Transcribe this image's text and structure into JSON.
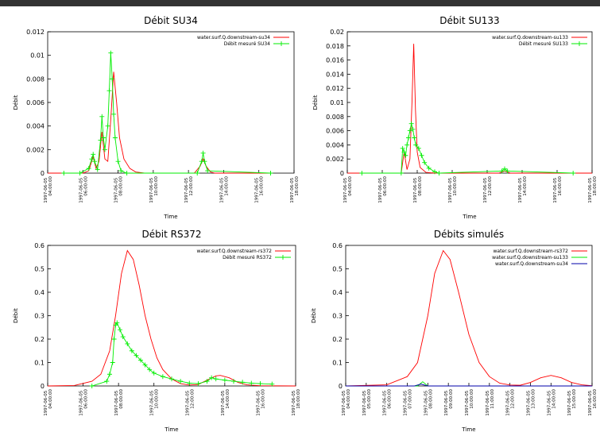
{
  "chart_data": [
    {
      "type": "line",
      "title": "Débit SU34",
      "xlabel": "Time",
      "ylabel": "Débit",
      "legend": "upper right",
      "xlim": [
        "1997-06-05 04:00:00",
        "1997-06-05 18:00:00"
      ],
      "xticks": [
        "1997-06-05 04:00:00",
        "1997-06-05 06:00:00",
        "1997-06-05 08:00:00",
        "1997-06-05 10:00:00",
        "1997-06-05 12:00:00",
        "1997-06-05 14:00:00",
        "1997-06-05 16:00:00",
        "1997-06-05 18:00:00"
      ],
      "ylim": [
        0,
        0.012
      ],
      "yticks": [
        0,
        0.002,
        0.004,
        0.006,
        0.008,
        0.01,
        0.012
      ],
      "series": [
        {
          "name": "water.surf.Q.downstream-su34",
          "color": "#ff0000",
          "x": [
            "1997-06-05 04:00:00",
            "1997-06-05 06:00:00",
            "1997-06-05 06:20:00",
            "1997-06-05 06:35:00",
            "1997-06-05 06:45:00",
            "1997-06-05 06:55:00",
            "1997-06-05 07:05:00",
            "1997-06-05 07:15:00",
            "1997-06-05 07:25:00",
            "1997-06-05 07:35:00",
            "1997-06-05 07:45:00",
            "1997-06-05 07:55:00",
            "1997-06-05 08:05:00",
            "1997-06-05 08:20:00",
            "1997-06-05 08:40:00",
            "1997-06-05 09:00:00",
            "1997-06-05 09:30:00",
            "1997-06-05 12:20:00",
            "1997-06-05 12:40:00",
            "1997-06-05 12:50:00",
            "1997-06-05 13:00:00",
            "1997-06-05 13:15:00",
            "1997-06-05 13:30:00",
            "1997-06-05 16:40:00"
          ],
          "values": [
            0,
            0,
            0.0002,
            0.0014,
            0.0004,
            0.001,
            0.0035,
            0.0012,
            0.001,
            0.0045,
            0.0086,
            0.006,
            0.003,
            0.0012,
            0.0004,
            0.0001,
            0,
            0,
            0.0006,
            0.0012,
            0.0006,
            0.0001,
            0,
            0
          ]
        },
        {
          "name": "Débit mesuré SU34",
          "color": "#00ee00",
          "marker": "+",
          "x": [
            "1997-06-05 04:55:00",
            "1997-06-05 05:50:00",
            "1997-06-05 06:20:00",
            "1997-06-05 06:30:00",
            "1997-06-05 06:35:00",
            "1997-06-05 06:40:00",
            "1997-06-05 06:50:00",
            "1997-06-05 07:00:00",
            "1997-06-05 07:05:00",
            "1997-06-05 07:10:00",
            "1997-06-05 07:15:00",
            "1997-06-05 07:25:00",
            "1997-06-05 07:30:00",
            "1997-06-05 07:35:00",
            "1997-06-05 07:40:00",
            "1997-06-05 07:45:00",
            "1997-06-05 07:50:00",
            "1997-06-05 08:00:00",
            "1997-06-05 08:10:00",
            "1997-06-05 08:30:00",
            "1997-06-05 12:30:00",
            "1997-06-05 12:45:00",
            "1997-06-05 12:50:00",
            "1997-06-05 12:55:00",
            "1997-06-05 13:05:00",
            "1997-06-05 16:40:00"
          ],
          "values": [
            0,
            0,
            0.0004,
            0.0012,
            0.0016,
            0.001,
            0.0003,
            0.0028,
            0.0048,
            0.003,
            0.002,
            0.004,
            0.007,
            0.0102,
            0.008,
            0.005,
            0.003,
            0.001,
            0.0002,
            0,
            0,
            0.001,
            0.0017,
            0.001,
            0.0002,
            0
          ]
        }
      ]
    },
    {
      "type": "line",
      "title": "Débit SU133",
      "xlabel": "Time",
      "ylabel": "Débit",
      "legend": "upper right",
      "xlim": [
        "1997-06-05 04:00:00",
        "1997-06-05 18:00:00"
      ],
      "xticks": [
        "1997-06-05 04:00:00",
        "1997-06-05 06:00:00",
        "1997-06-05 08:00:00",
        "1997-06-05 10:00:00",
        "1997-06-05 12:00:00",
        "1997-06-05 14:00:00",
        "1997-06-05 16:00:00",
        "1997-06-05 18:00:00"
      ],
      "ylim": [
        0,
        0.02
      ],
      "yticks": [
        0,
        0.002,
        0.004,
        0.006,
        0.008,
        0.01,
        0.012,
        0.014,
        0.016,
        0.018,
        0.02
      ],
      "series": [
        {
          "name": "water.surf.Q.downstream-su133",
          "color": "#ff0000",
          "x": [
            "1997-06-05 04:00:00",
            "1997-06-05 07:05:00",
            "1997-06-05 07:15:00",
            "1997-06-05 07:25:00",
            "1997-06-05 07:35:00",
            "1997-06-05 07:42:00",
            "1997-06-05 07:48:00",
            "1997-06-05 07:54:00",
            "1997-06-05 08:00:00",
            "1997-06-05 08:10:00",
            "1997-06-05 08:30:00",
            "1997-06-05 09:00:00",
            "1997-06-05 12:40:00",
            "1997-06-05 13:00:00",
            "1997-06-05 13:20:00",
            "1997-06-05 18:00:00"
          ],
          "values": [
            0,
            0,
            0.003,
            0.0005,
            0.002,
            0.01,
            0.0183,
            0.009,
            0.003,
            0.0008,
            0.0001,
            0,
            0,
            0.0003,
            0,
            0
          ]
        },
        {
          "name": "Débit mesuré SU133",
          "color": "#00ee00",
          "marker": "+",
          "x": [
            "1997-06-05 04:50:00",
            "1997-06-05 07:05:00",
            "1997-06-05 07:10:00",
            "1997-06-05 07:15:00",
            "1997-06-05 07:20:00",
            "1997-06-05 07:25:00",
            "1997-06-05 07:30:00",
            "1997-06-05 07:35:00",
            "1997-06-05 07:40:00",
            "1997-06-05 07:45:00",
            "1997-06-05 07:50:00",
            "1997-06-05 07:55:00",
            "1997-06-05 08:05:00",
            "1997-06-05 08:15:00",
            "1997-06-05 08:25:00",
            "1997-06-05 08:40:00",
            "1997-06-05 09:00:00",
            "1997-06-05 09:15:00",
            "1997-06-05 12:50:00",
            "1997-06-05 13:00:00",
            "1997-06-05 13:10:00",
            "1997-06-05 16:55:00"
          ],
          "values": [
            0,
            0,
            0.0035,
            0.003,
            0.0025,
            0.004,
            0.005,
            0.006,
            0.007,
            0.0062,
            0.005,
            0.004,
            0.0035,
            0.0025,
            0.0015,
            0.0007,
            0.0002,
            0,
            0.0003,
            0.0006,
            0.0003,
            0
          ]
        }
      ]
    },
    {
      "type": "line",
      "title": "Débit RS372",
      "xlabel": "Time",
      "ylabel": "Débit",
      "legend": "upper right",
      "xlim": [
        "1997-06-05 04:00:00",
        "1997-06-05 18:00:00"
      ],
      "xticks": [
        "1997-06-05 04:00:00",
        "1997-06-05 06:00:00",
        "1997-06-05 08:00:00",
        "1997-06-05 10:00:00",
        "1997-06-05 12:00:00",
        "1997-06-05 14:00:00",
        "1997-06-05 16:00:00",
        "1997-06-05 18:00:00"
      ],
      "ylim": [
        0,
        0.6
      ],
      "yticks": [
        0,
        0.1,
        0.2,
        0.3,
        0.4,
        0.5,
        0.6
      ],
      "series": [
        {
          "name": "water.surf.Q.downstream-rs372",
          "color": "#ff0000",
          "x": [
            "1997-06-05 04:00:00",
            "1997-06-05 05:30:00",
            "1997-06-05 06:30:00",
            "1997-06-05 07:00:00",
            "1997-06-05 07:30:00",
            "1997-06-05 07:50:00",
            "1997-06-05 08:10:00",
            "1997-06-05 08:30:00",
            "1997-06-05 08:50:00",
            "1997-06-05 09:10:00",
            "1997-06-05 09:30:00",
            "1997-06-05 09:50:00",
            "1997-06-05 10:10:00",
            "1997-06-05 10:30:00",
            "1997-06-05 11:00:00",
            "1997-06-05 11:30:00",
            "1997-06-05 12:00:00",
            "1997-06-05 12:30:00",
            "1997-06-05 13:00:00",
            "1997-06-05 13:30:00",
            "1997-06-05 13:45:00",
            "1997-06-05 14:15:00",
            "1997-06-05 14:45:00",
            "1997-06-05 15:15:00",
            "1997-06-05 16:00:00",
            "1997-06-05 18:00:00"
          ],
          "values": [
            0,
            0.002,
            0.02,
            0.05,
            0.15,
            0.3,
            0.48,
            0.578,
            0.54,
            0.43,
            0.3,
            0.2,
            0.12,
            0.07,
            0.03,
            0.01,
            0.004,
            0.006,
            0.025,
            0.043,
            0.045,
            0.035,
            0.015,
            0.005,
            0.001,
            0
          ]
        },
        {
          "name": "Débit mesuré RS372",
          "color": "#00ee00",
          "marker": "+",
          "x": [
            "1997-06-05 06:30:00",
            "1997-06-05 07:20:00",
            "1997-06-05 07:30:00",
            "1997-06-05 07:40:00",
            "1997-06-05 07:45:00",
            "1997-06-05 07:50:00",
            "1997-06-05 07:55:00",
            "1997-06-05 08:05:00",
            "1997-06-05 08:15:00",
            "1997-06-05 08:30:00",
            "1997-06-05 08:45:00",
            "1997-06-05 09:00:00",
            "1997-06-05 09:15:00",
            "1997-06-05 09:30:00",
            "1997-06-05 09:45:00",
            "1997-06-05 10:00:00",
            "1997-06-05 10:30:00",
            "1997-06-05 11:00:00",
            "1997-06-05 11:30:00",
            "1997-06-05 12:00:00",
            "1997-06-05 12:30:00",
            "1997-06-05 13:00:00",
            "1997-06-05 13:15:00",
            "1997-06-05 13:30:00",
            "1997-06-05 14:00:00",
            "1997-06-05 14:30:00",
            "1997-06-05 15:00:00",
            "1997-06-05 15:30:00",
            "1997-06-05 16:00:00",
            "1997-06-05 16:40:00"
          ],
          "values": [
            0,
            0.02,
            0.05,
            0.1,
            0.2,
            0.26,
            0.27,
            0.24,
            0.21,
            0.18,
            0.15,
            0.13,
            0.11,
            0.09,
            0.07,
            0.055,
            0.04,
            0.03,
            0.02,
            0.012,
            0.01,
            0.02,
            0.035,
            0.03,
            0.025,
            0.02,
            0.016,
            0.012,
            0.01,
            0.008
          ]
        }
      ]
    },
    {
      "type": "line",
      "title": "Débits simulés",
      "xlabel": "Time",
      "ylabel": "Débit",
      "legend": "upper right",
      "xlim": [
        "1997-06-05 04:00:00",
        "1997-06-05 16:00:00"
      ],
      "xticks": [
        "1997-06-05 04:00:00",
        "1997-06-05 05:00:00",
        "1997-06-05 06:00:00",
        "1997-06-05 07:00:00",
        "1997-06-05 08:00:00",
        "1997-06-05 09:00:00",
        "1997-06-05 10:00:00",
        "1997-06-05 11:00:00",
        "1997-06-05 12:00:00",
        "1997-06-05 13:00:00",
        "1997-06-05 14:00:00",
        "1997-06-05 15:00:00",
        "1997-06-05 16:00:00"
      ],
      "ylim": [
        0,
        0.6
      ],
      "yticks": [
        0,
        0.1,
        0.2,
        0.3,
        0.4,
        0.5,
        0.6
      ],
      "series": [
        {
          "name": "water.surf.Q.downstream-rs372",
          "color": "#ff0000",
          "x": [
            "1997-06-05 04:00:00",
            "1997-06-05 06:00:00",
            "1997-06-05 07:00:00",
            "1997-06-05 07:30:00",
            "1997-06-05 08:00:00",
            "1997-06-05 08:20:00",
            "1997-06-05 08:45:00",
            "1997-06-05 09:05:00",
            "1997-06-05 09:30:00",
            "1997-06-05 10:00:00",
            "1997-06-05 10:30:00",
            "1997-06-05 11:00:00",
            "1997-06-05 11:30:00",
            "1997-06-05 12:00:00",
            "1997-06-05 12:30:00",
            "1997-06-05 13:00:00",
            "1997-06-05 13:30:00",
            "1997-06-05 14:00:00",
            "1997-06-05 14:30:00",
            "1997-06-05 15:00:00",
            "1997-06-05 15:30:00",
            "1997-06-05 16:00:00"
          ],
          "values": [
            0,
            0.005,
            0.04,
            0.1,
            0.3,
            0.48,
            0.578,
            0.54,
            0.4,
            0.22,
            0.1,
            0.04,
            0.012,
            0.004,
            0.003,
            0.015,
            0.035,
            0.045,
            0.035,
            0.015,
            0.005,
            0.001
          ]
        },
        {
          "name": "water.surf.Q.downstream-su133",
          "color": "#00ee00",
          "x": [
            "1997-06-05 04:00:00",
            "1997-06-05 07:30:00",
            "1997-06-05 07:45:00",
            "1997-06-05 08:00:00",
            "1997-06-05 16:00:00"
          ],
          "values": [
            0,
            0,
            0.018,
            0,
            0
          ]
        },
        {
          "name": "water.surf.Q.downstream-su34",
          "color": "#0000aa",
          "x": [
            "1997-06-05 04:00:00",
            "1997-06-05 07:20:00",
            "1997-06-05 07:40:00",
            "1997-06-05 08:00:00",
            "1997-06-05 16:00:00"
          ],
          "values": [
            0,
            0,
            0.008,
            0,
            0
          ]
        }
      ]
    }
  ]
}
